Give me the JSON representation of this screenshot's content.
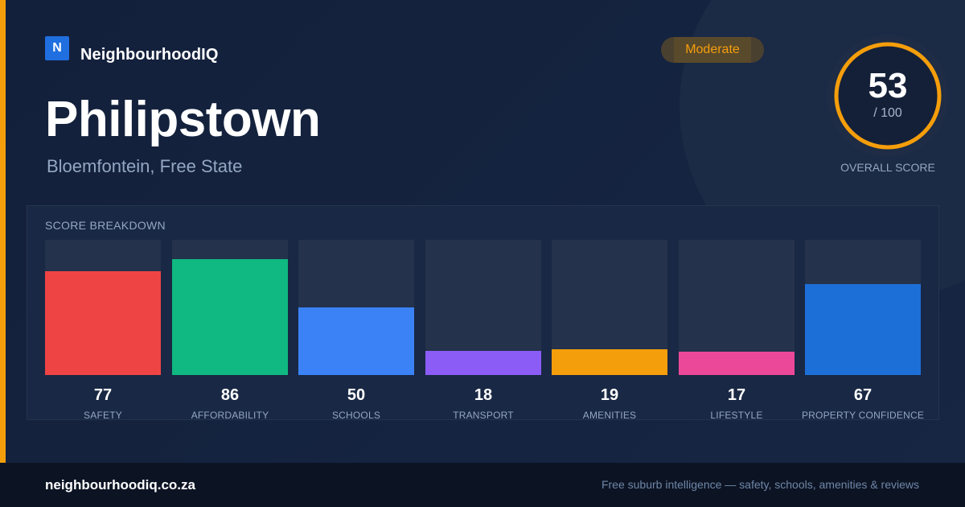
{
  "brand": {
    "logo_letter": "N",
    "name": "NeighbourhoodIQ"
  },
  "title": "Philipstown",
  "location": "Bloemfontein, Free State",
  "badge": {
    "label": "Moderate",
    "color": "#f59e0b"
  },
  "overall": {
    "value": "53",
    "max": "/ 100",
    "caption": "OVERALL SCORE",
    "fraction": 0.53,
    "ring_color": "#f59e0b"
  },
  "breakdown_title": "SCORE BREAKDOWN",
  "chart_data": {
    "type": "bar",
    "title": "SCORE BREAKDOWN",
    "categories": [
      "SAFETY",
      "AFFORDABILITY",
      "SCHOOLS",
      "TRANSPORT",
      "AMENITIES",
      "LIFESTYLE",
      "PROPERTY CONFIDENCE"
    ],
    "values": [
      77,
      86,
      50,
      18,
      19,
      17,
      67
    ],
    "colors": [
      "#ef4444",
      "#10b981",
      "#3b82f6",
      "#8b5cf6",
      "#f59e0b",
      "#ec4899",
      "#1d6fd8"
    ],
    "ylim": [
      0,
      100
    ],
    "grid": false
  },
  "footer": {
    "url": "neighbourhoodiq.co.za",
    "tagline": "Free suburb intelligence — safety, schools, amenities & reviews"
  }
}
